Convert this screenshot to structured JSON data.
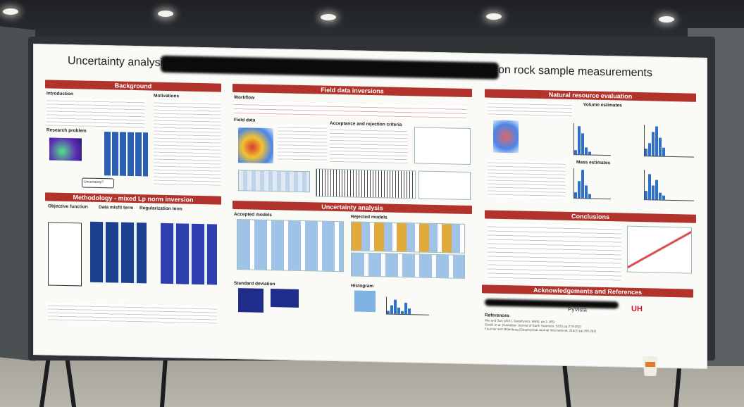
{
  "poster": {
    "title_start": "Uncertainty analysis of 3D",
    "title_end": "conditioned on rock sample measurements",
    "sections": {
      "background": "Background",
      "field": "Field data inversions",
      "natural": "Natural resource evaluation",
      "methodology": "Methodology - mixed Lp norm inversion",
      "uncertainty": "Uncertainty analysis",
      "conclusions": "Conclusions",
      "acknowledgements": "Acknowledgements and References"
    },
    "subheads": {
      "introduction": "Introduction",
      "motivations": "Motivations",
      "research_problem": "Research problem",
      "uncertainty_q": "Uncertainty?",
      "workflow": "Workflow",
      "field_data": "Field data",
      "acceptance": "Acceptance and rejection criteria",
      "volume": "Volume estimates",
      "mass": "Mass estimates",
      "objective": "Objective function",
      "data_misfit": "Data misfit term",
      "regularization": "Regularization term",
      "accepted": "Accepted models",
      "rejected": "Rejected models",
      "std": "Standard deviation",
      "histogram": "Histogram",
      "references": "References"
    },
    "references": [
      "Wei and Sun (2021, Geophysics, 86(6), pp.1-105)",
      "Gwolk et al. (Canadian Journal of Earth Sciences, 52(5) pp.279-292)",
      "Fournier and Oldenburg (Geophysical Journal International, 216(1) pp.266-282)"
    ],
    "logos": {
      "pyvista": "PyVista",
      "uh": "UH"
    }
  }
}
